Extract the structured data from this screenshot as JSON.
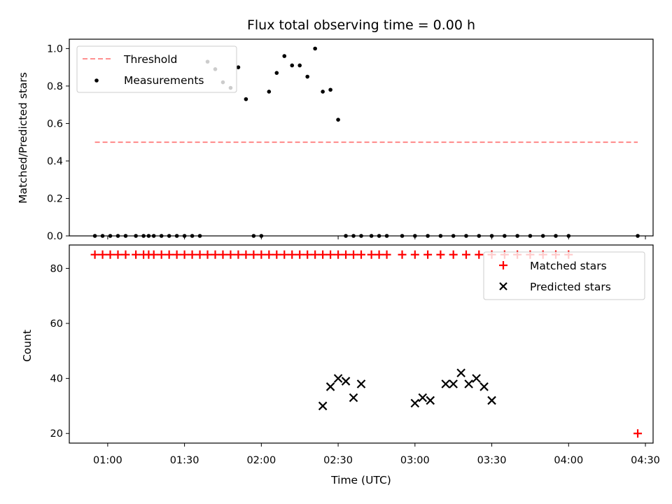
{
  "chart_data": [
    {
      "type": "scatter",
      "title": "Flux total observing time = 0.00 h",
      "ylabel": "Matched/Predicted stars",
      "ylim": [
        0,
        1.05
      ],
      "xlim": [
        "00:45",
        "04:33"
      ],
      "yticks": [
        "0.0",
        "0.2",
        "0.4",
        "0.6",
        "0.8",
        "1.0"
      ],
      "grid": false,
      "legend": "top-left",
      "threshold": {
        "name": "Threshold",
        "value": 0.5,
        "x": [
          "00:55",
          "04:27"
        ],
        "color": "#ff8080"
      },
      "series": [
        {
          "name": "Measurements",
          "color": "#000000",
          "x": [
            "00:55",
            "00:58",
            "01:01",
            "01:04",
            "01:07",
            "01:11",
            "01:14",
            "01:16",
            "01:18",
            "01:21",
            "01:24",
            "01:27",
            "01:30",
            "01:33",
            "01:36",
            "01:39",
            "01:42",
            "01:45",
            "01:48",
            "01:51",
            "01:54",
            "01:57",
            "02:00",
            "02:03",
            "02:06",
            "02:09",
            "02:12",
            "02:15",
            "02:18",
            "02:21",
            "02:24",
            "02:27",
            "02:30",
            "02:33",
            "02:36",
            "02:39",
            "02:43",
            "02:46",
            "02:49",
            "02:55",
            "03:00",
            "03:05",
            "03:10",
            "03:15",
            "03:20",
            "03:25",
            "03:30",
            "03:35",
            "03:40",
            "03:45",
            "03:50",
            "03:55",
            "04:00",
            "04:27"
          ],
          "y": [
            0,
            0,
            0,
            0,
            0,
            0,
            0,
            0,
            0,
            0,
            0,
            0,
            0,
            0,
            0,
            0.93,
            0.89,
            0.82,
            0.79,
            0.9,
            0.73,
            0,
            0,
            0.77,
            0.87,
            0.96,
            0.91,
            0.91,
            0.85,
            1.0,
            0.77,
            0.78,
            0.62,
            0,
            0,
            0,
            0,
            0,
            0,
            0,
            0,
            0,
            0,
            0,
            0,
            0,
            0,
            0,
            0,
            0,
            0,
            0,
            0,
            0
          ]
        }
      ]
    },
    {
      "type": "scatter",
      "xlabel": "Time (UTC)",
      "ylabel": "Count",
      "ylim": [
        16.5,
        88.5
      ],
      "xlim": [
        "00:45",
        "04:33"
      ],
      "xticks": [
        "01:00",
        "01:30",
        "02:00",
        "02:30",
        "03:00",
        "03:30",
        "04:00",
        "04:30"
      ],
      "yticks": [
        "20",
        "40",
        "60",
        "80"
      ],
      "grid": false,
      "legend": "top-right",
      "series": [
        {
          "name": "Matched stars",
          "color": "#ff0000",
          "marker": "plus",
          "x": [
            "00:55",
            "00:58",
            "01:01",
            "01:04",
            "01:07",
            "01:11",
            "01:14",
            "01:16",
            "01:18",
            "01:21",
            "01:24",
            "01:27",
            "01:30",
            "01:33",
            "01:36",
            "01:39",
            "01:42",
            "01:45",
            "01:48",
            "01:51",
            "01:54",
            "01:57",
            "02:00",
            "02:03",
            "02:06",
            "02:09",
            "02:12",
            "02:15",
            "02:18",
            "02:21",
            "02:24",
            "02:27",
            "02:30",
            "02:33",
            "02:36",
            "02:39",
            "02:43",
            "02:46",
            "02:49",
            "02:55",
            "03:00",
            "03:05",
            "03:10",
            "03:15",
            "03:20",
            "03:25",
            "03:30",
            "03:35",
            "03:40",
            "03:45",
            "03:50",
            "03:55",
            "04:00",
            "04:27"
          ],
          "y": [
            85,
            85,
            85,
            85,
            85,
            85,
            85,
            85,
            85,
            85,
            85,
            85,
            85,
            85,
            85,
            85,
            85,
            85,
            85,
            85,
            85,
            85,
            85,
            85,
            85,
            85,
            85,
            85,
            85,
            85,
            85,
            85,
            85,
            85,
            85,
            85,
            85,
            85,
            85,
            85,
            85,
            85,
            85,
            85,
            85,
            85,
            85,
            85,
            85,
            85,
            85,
            85,
            85,
            20
          ]
        },
        {
          "name": "Predicted stars",
          "color": "#000000",
          "marker": "x",
          "x": [
            "02:24",
            "02:27",
            "02:30",
            "02:33",
            "02:36",
            "02:39",
            "03:00",
            "03:03",
            "03:06",
            "03:12",
            "03:15",
            "03:18",
            "03:21",
            "03:24",
            "03:27",
            "03:30"
          ],
          "y": [
            30,
            37,
            40,
            39,
            33,
            38,
            31,
            33,
            32,
            38,
            38,
            42,
            38,
            40,
            37,
            32
          ]
        }
      ]
    }
  ]
}
